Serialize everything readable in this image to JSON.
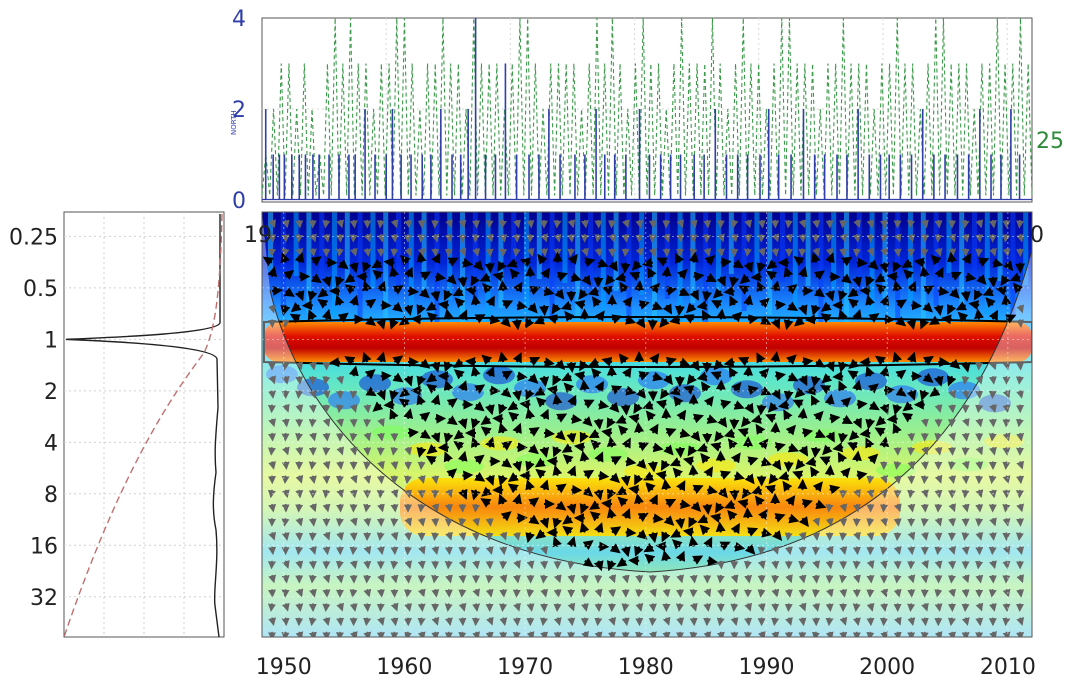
{
  "chart_data": [
    {
      "type": "line",
      "panel": "time-series",
      "ylabel": "NORTH",
      "ylabel_right": "",
      "yticks": [
        "0",
        "2",
        "4"
      ],
      "yticks_right": [
        "25"
      ],
      "ylim": [
        0,
        4
      ],
      "xlim": [
        1950,
        2012
      ],
      "series": [
        {
          "name": "",
          "style": "solid",
          "color": "#2f3ea8",
          "x": [
            1950.3,
            1950.9,
            1951.4,
            1951.8,
            1952.4,
            1953.0,
            1953.5,
            1954.1,
            1954.6,
            1955.4,
            1956.2,
            1957.0,
            1957.5,
            1958.3,
            1959.1,
            1960.0,
            1960.5,
            1961.2,
            1962.0,
            1962.9,
            1963.6,
            1964.4,
            1965.3,
            1966.0,
            1966.6,
            1967.2,
            1968.0,
            1968.8,
            1969.6,
            1970.5,
            1971.5,
            1972.3,
            1973.1,
            1974.0,
            1975.2,
            1976.0,
            1976.9,
            1977.6,
            1978.4,
            1979.3,
            1980.4,
            1981.2,
            1982.1,
            1982.9,
            1983.7,
            1984.8,
            1985.6,
            1986.5,
            1987.4,
            1988.3,
            1989.1,
            1990.1,
            1990.8,
            1991.6,
            1992.6,
            1993.6,
            1994.5,
            1995.3,
            1996.3,
            1997.1,
            1998.0,
            1998.9,
            1999.8,
            2000.5,
            2001.4,
            2002.3,
            2003.2,
            2004.1,
            2005.0,
            2006.0,
            2006.9,
            2007.8,
            2008.7,
            2009.5,
            2010.3,
            2011.0
          ],
          "y": [
            2,
            1,
            1,
            1,
            1,
            1,
            1,
            1,
            1,
            1,
            1,
            1,
            1,
            2,
            1,
            1,
            2,
            1,
            1,
            1,
            1,
            2,
            1,
            1,
            2,
            4,
            1,
            1,
            3,
            1,
            1,
            1,
            2,
            1,
            1,
            1,
            2,
            1,
            1,
            1,
            2,
            1,
            1,
            1,
            1,
            1,
            1,
            2,
            1,
            1,
            1,
            1,
            2,
            1,
            1,
            2,
            1,
            1,
            1,
            1,
            2,
            1,
            1,
            1,
            1,
            1,
            2,
            1,
            1,
            1,
            1,
            2,
            1,
            1,
            2,
            1
          ]
        },
        {
          "name": "",
          "style": "dashed",
          "color": "#3c9a4a",
          "x_start": 1950,
          "x_step": 0.62,
          "y_peaks": [
            1,
            2,
            3,
            3,
            2,
            3,
            2,
            1,
            3,
            4,
            3,
            4,
            3,
            3,
            2,
            3,
            3,
            4,
            4,
            3,
            2,
            3,
            3,
            4,
            3,
            3,
            2,
            4,
            3,
            3,
            3,
            2,
            3,
            4,
            4,
            3,
            2,
            3,
            3,
            3,
            3,
            2,
            3,
            4,
            3,
            4,
            3,
            2,
            3,
            4,
            3,
            3,
            2,
            3,
            4,
            3,
            3,
            3,
            4,
            3,
            2,
            3,
            4,
            3,
            3,
            2,
            3,
            4,
            4,
            3,
            3,
            3,
            2,
            3,
            3,
            4,
            3,
            3,
            3,
            2,
            3,
            3,
            4,
            3,
            3,
            2,
            3,
            4,
            4,
            3,
            3,
            3,
            2,
            3,
            3,
            4,
            3,
            3,
            4,
            3
          ]
        }
      ]
    },
    {
      "type": "heatmap",
      "panel": "wavelet-coherence",
      "xticks": [
        "1950",
        "1960",
        "1970",
        "1980",
        "1990",
        "2000",
        "2010"
      ],
      "xtick_values": [
        1950,
        1960,
        1970,
        1980,
        1990,
        2000,
        2010
      ],
      "xlim": [
        1948.2,
        2012
      ],
      "yticks": [
        "0.25",
        "0.5",
        "1",
        "2",
        "4",
        "8",
        "16",
        "32"
      ],
      "ytick_values": [
        0.25,
        0.5,
        1,
        2,
        4,
        8,
        16,
        32
      ],
      "ylim": [
        0.18,
        55
      ],
      "yscale": "log2",
      "significant_band": {
        "period": 1,
        "x_from": 1950.5,
        "x_to": 2011.5
      },
      "high_power_band": {
        "period": 10,
        "x_from": 1957,
        "x_to": 1998
      },
      "colormap": [
        "#00008f",
        "#0033ff",
        "#00c8ff",
        "#46ff46",
        "#ffff00",
        "#ff8c00",
        "#d00000"
      ]
    },
    {
      "type": "line",
      "panel": "global-power",
      "yticks": [
        "0.25",
        "0.5",
        "1",
        "2",
        "4",
        "8",
        "16",
        "32"
      ],
      "ytick_values": [
        0.25,
        0.5,
        1,
        2,
        4,
        8,
        16,
        32
      ],
      "series": [
        {
          "name": "",
          "style": "solid",
          "color": "#222222"
        },
        {
          "name": "",
          "style": "dashed",
          "color": "#c07070"
        }
      ]
    }
  ],
  "top_axis_left_remnant": "19",
  "top_axis_right_remnant": "0"
}
